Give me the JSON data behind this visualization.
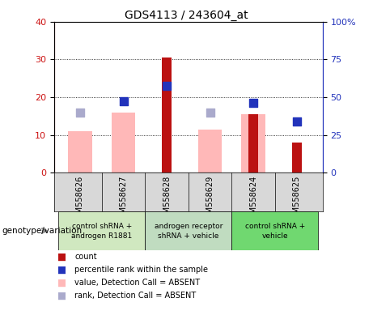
{
  "title": "GDS4113 / 243604_at",
  "samples": [
    "GSM558626",
    "GSM558627",
    "GSM558628",
    "GSM558629",
    "GSM558624",
    "GSM558625"
  ],
  "group_colors": [
    "#d0e8c0",
    "#c0dcc0",
    "#70d870"
  ],
  "group_labels": [
    "control shRNA +\nandrogen R1881",
    "androgen receptor\nshRNA + vehicle",
    "control shRNA +\nvehicle"
  ],
  "group_ranges": [
    [
      0,
      1
    ],
    [
      2,
      3
    ],
    [
      4,
      5
    ]
  ],
  "bar_heights_pink": [
    11,
    16,
    null,
    11.5,
    15.5,
    null
  ],
  "bar_heights_red": [
    null,
    null,
    30.5,
    null,
    15.5,
    8
  ],
  "rank_dots_light_left": [
    16,
    null,
    null,
    16,
    null,
    null
  ],
  "rank_dots_dark_left": [
    null,
    19,
    23,
    null,
    18.5,
    13.5
  ],
  "ylim_left": [
    0,
    40
  ],
  "ylim_right": [
    0,
    100
  ],
  "yticks_left": [
    0,
    10,
    20,
    30,
    40
  ],
  "yticks_right": [
    0,
    25,
    50,
    75,
    100
  ],
  "ytick_labels_right": [
    "0",
    "25",
    "50",
    "75",
    "100%"
  ],
  "pink_bar_color": "#ffb8b8",
  "red_bar_color": "#bb1111",
  "light_blue_dot_color": "#aaaacc",
  "dark_blue_dot_color": "#2233bb",
  "left_axis_color": "#cc1111",
  "right_axis_color": "#2233bb",
  "grid_color": "black",
  "sample_bg_color": "#d8d8d8",
  "plot_bg": "white",
  "legend_labels": [
    "count",
    "percentile rank within the sample",
    "value, Detection Call = ABSENT",
    "rank, Detection Call = ABSENT"
  ],
  "legend_colors": [
    "#bb1111",
    "#2233bb",
    "#ffb8b8",
    "#aaaacc"
  ],
  "genotype_label": "genotype/variation",
  "pink_bar_width": 0.55,
  "red_bar_width": 0.22,
  "dot_size": 45,
  "tick_fontsize": 8,
  "sample_fontsize": 7,
  "group_fontsize": 6.5,
  "legend_fontsize": 7,
  "title_fontsize": 10
}
